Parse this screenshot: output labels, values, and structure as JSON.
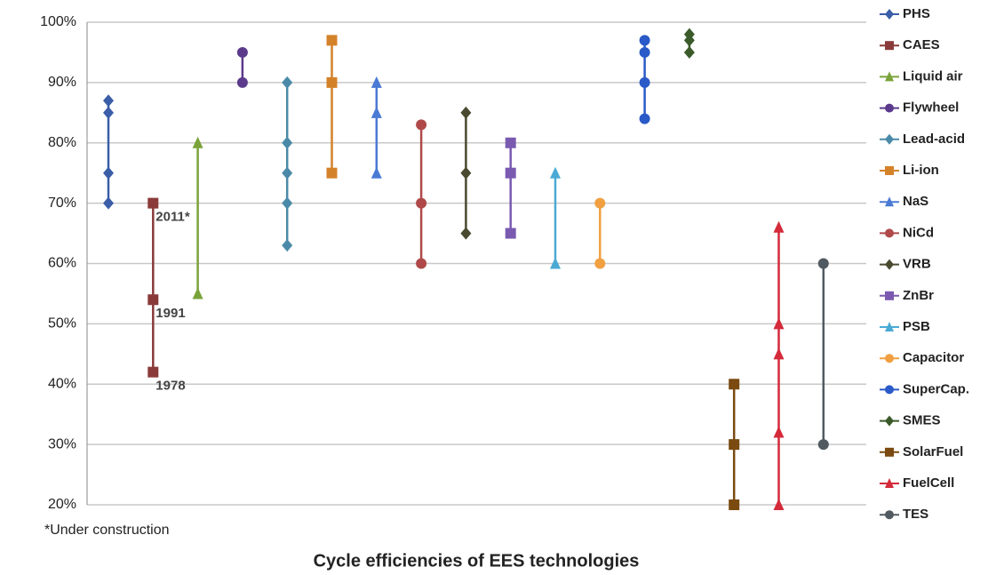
{
  "chart_data": {
    "type": "range",
    "title": "Cycle efficiencies of EES technologies",
    "note": "*Under construction",
    "ylim": [
      20,
      100
    ],
    "yticks": [
      {
        "value": 20,
        "label": "20%"
      },
      {
        "value": 30,
        "label": "30%"
      },
      {
        "value": 40,
        "label": "40%"
      },
      {
        "value": 50,
        "label": "50%"
      },
      {
        "value": 60,
        "label": "60%"
      },
      {
        "value": 70,
        "label": "70%"
      },
      {
        "value": 80,
        "label": "80%"
      },
      {
        "value": 90,
        "label": "90%"
      },
      {
        "value": 100,
        "label": "100%"
      }
    ],
    "grid": true,
    "legend": "right",
    "series": [
      {
        "name": "PHS",
        "color": "#3a5ea8",
        "marker": "diamond",
        "values": [
          87,
          85,
          75,
          70
        ]
      },
      {
        "name": "CAES",
        "color": "#8b3a3a",
        "marker": "square",
        "values": [
          70,
          54,
          42
        ],
        "point_labels": [
          "2011*",
          "1991",
          "1978"
        ]
      },
      {
        "name": "Liquid air",
        "color": "#7aa33a",
        "marker": "triangle",
        "values": [
          80,
          55
        ]
      },
      {
        "name": "Flywheel",
        "color": "#5b3a8c",
        "marker": "circle",
        "values": [
          95,
          90
        ]
      },
      {
        "name": "Lead-acid",
        "color": "#4a8aa8",
        "marker": "diamond",
        "values": [
          90,
          80,
          75,
          70,
          63
        ]
      },
      {
        "name": "Li-ion",
        "color": "#d4822a",
        "marker": "square",
        "values": [
          97,
          90,
          75
        ]
      },
      {
        "name": "NaS",
        "color": "#4a7ad4",
        "marker": "triangle",
        "values": [
          90,
          85,
          75
        ]
      },
      {
        "name": "NiCd",
        "color": "#b04a4a",
        "marker": "circle",
        "values": [
          83,
          70,
          60
        ]
      },
      {
        "name": "VRB",
        "color": "#4a4a30",
        "marker": "diamond",
        "values": [
          85,
          75,
          65
        ]
      },
      {
        "name": "ZnBr",
        "color": "#7a5ab0",
        "marker": "square",
        "values": [
          80,
          75,
          65
        ]
      },
      {
        "name": "PSB",
        "color": "#4aaad4",
        "marker": "triangle",
        "values": [
          75,
          60
        ]
      },
      {
        "name": "Capacitor",
        "color": "#f0a040",
        "marker": "circle",
        "values": [
          70,
          60
        ]
      },
      {
        "name": "SuperCap.",
        "color": "#2a5ac8",
        "marker": "circle",
        "values": [
          97,
          95,
          90,
          84
        ]
      },
      {
        "name": "SMES",
        "color": "#3a5a2a",
        "marker": "diamond",
        "values": [
          98,
          97,
          95
        ]
      },
      {
        "name": "SolarFuel",
        "color": "#7a4a10",
        "marker": "square",
        "values": [
          40,
          30,
          20
        ]
      },
      {
        "name": "FuelCell",
        "color": "#d42a3a",
        "marker": "triangle",
        "values": [
          66,
          50,
          45,
          32,
          20
        ]
      },
      {
        "name": "TES",
        "color": "#505a60",
        "marker": "circle",
        "values": [
          60,
          30
        ]
      }
    ]
  }
}
